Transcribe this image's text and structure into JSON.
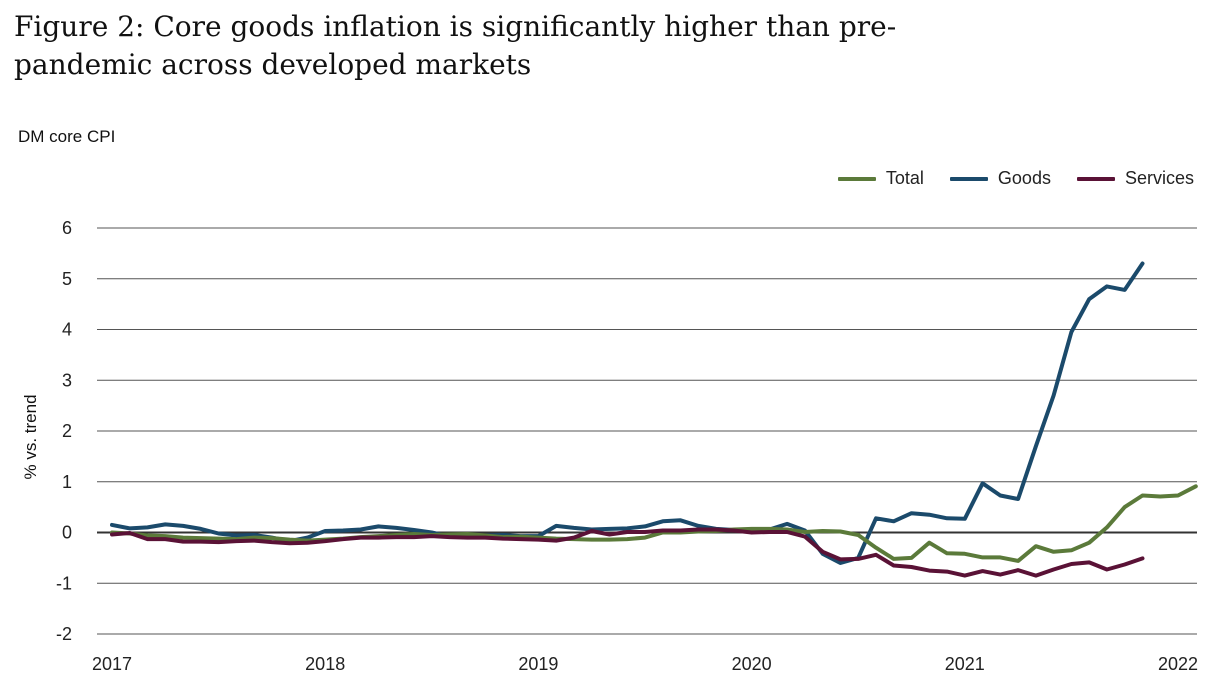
{
  "title": "Figure 2: Core goods inflation is significantly higher than pre-pandemic across developed markets",
  "chart_data": {
    "type": "line",
    "subtitle": "DM core CPI",
    "title": "",
    "xlabel": "",
    "ylabel": "% vs. trend",
    "ylim": [
      -2,
      6
    ],
    "yticks": [
      6,
      5,
      4,
      3,
      2,
      1,
      0,
      -1,
      -2
    ],
    "xlim": [
      2017,
      2022
    ],
    "xticks": [
      2017,
      2018,
      2019,
      2020,
      2021,
      2022
    ],
    "grid": true,
    "legend_position": "top-right",
    "series": [
      {
        "name": "Total",
        "color": "#5b7a3a",
        "values": [
          0.0,
          -0.02,
          -0.06,
          -0.07,
          -0.1,
          -0.11,
          -0.12,
          -0.13,
          -0.1,
          -0.11,
          -0.14,
          -0.16,
          -0.14,
          -0.12,
          -0.09,
          -0.07,
          -0.05,
          -0.03,
          -0.05,
          -0.04,
          -0.03,
          -0.06,
          -0.09,
          -0.08,
          -0.1,
          -0.12,
          -0.13,
          -0.14,
          -0.14,
          -0.13,
          -0.1,
          0.0,
          0.0,
          0.02,
          0.03,
          0.06,
          0.07,
          0.07,
          0.06,
          0.01,
          0.03,
          0.02,
          -0.05,
          -0.3,
          -0.52,
          -0.5,
          -0.2,
          -0.41,
          -0.42,
          -0.49,
          -0.49,
          -0.56,
          -0.27,
          -0.38,
          -0.35,
          -0.2,
          0.1,
          0.5,
          0.73,
          0.71,
          0.73,
          0.91
        ]
      },
      {
        "name": "Goods",
        "color": "#1b4a6b",
        "values": [
          0.15,
          0.08,
          0.1,
          0.16,
          0.13,
          0.07,
          -0.02,
          -0.06,
          -0.05,
          -0.1,
          -0.17,
          -0.1,
          0.03,
          0.04,
          0.06,
          0.12,
          0.09,
          0.05,
          0.0,
          -0.08,
          -0.08,
          -0.06,
          -0.05,
          -0.07,
          -0.07,
          0.13,
          0.09,
          0.06,
          0.07,
          0.08,
          0.12,
          0.22,
          0.24,
          0.13,
          0.07,
          0.05,
          0.02,
          0.06,
          0.17,
          0.04,
          -0.42,
          -0.6,
          -0.5,
          0.28,
          0.22,
          0.38,
          0.35,
          0.28,
          0.27,
          0.97,
          0.73,
          0.66,
          1.7,
          2.7,
          3.95,
          4.6,
          4.85,
          4.78,
          5.3
        ]
      },
      {
        "name": "Services",
        "color": "#5a1236",
        "values": [
          -0.04,
          -0.01,
          -0.13,
          -0.13,
          -0.18,
          -0.18,
          -0.19,
          -0.17,
          -0.16,
          -0.19,
          -0.21,
          -0.2,
          -0.17,
          -0.13,
          -0.1,
          -0.1,
          -0.09,
          -0.09,
          -0.07,
          -0.09,
          -0.1,
          -0.1,
          -0.12,
          -0.13,
          -0.14,
          -0.16,
          -0.1,
          0.03,
          -0.04,
          0.01,
          0.01,
          0.04,
          0.04,
          0.06,
          0.06,
          0.04,
          0.0,
          0.01,
          0.01,
          -0.08,
          -0.38,
          -0.53,
          -0.52,
          -0.44,
          -0.65,
          -0.68,
          -0.75,
          -0.77,
          -0.85,
          -0.76,
          -0.83,
          -0.74,
          -0.85,
          -0.73,
          -0.62,
          -0.59,
          -0.73,
          -0.63,
          -0.51
        ]
      }
    ]
  }
}
